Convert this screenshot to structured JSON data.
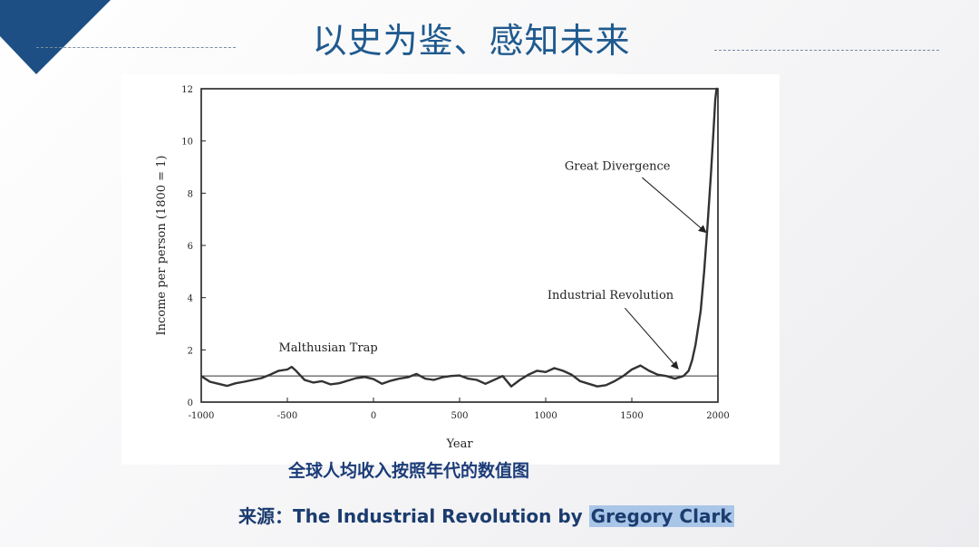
{
  "slide": {
    "title": "以史为鉴、感知未来",
    "caption": "全球人均收入按照年代的数值图",
    "source_prefix": "来源：The Industrial Revolution by ",
    "source_author": "Gregory Clark",
    "accent_color": "#1f5a8e"
  },
  "chart_data": {
    "type": "line",
    "title": "",
    "xlabel": "Year",
    "ylabel": "Income per person (1800 = 1)",
    "xlim": [
      -1000,
      2000
    ],
    "ylim": [
      0,
      12
    ],
    "x_ticks": [
      -1000,
      -500,
      0,
      500,
      1000,
      1500,
      2000
    ],
    "y_ticks": [
      0,
      2,
      4,
      6,
      8,
      10,
      12
    ],
    "grid": false,
    "reference_line": {
      "y": 1
    },
    "annotations": [
      {
        "text": "Malthusian Trap"
      },
      {
        "text": "Industrial Revolution",
        "points_to": [
          1800,
          1.0
        ]
      },
      {
        "text": "Great Divergence",
        "points_to": [
          1930,
          6.5
        ]
      }
    ],
    "series": [
      {
        "x": [
          -1000,
          -950,
          -900,
          -850,
          -800,
          -750,
          -700,
          -650,
          -600,
          -550,
          -500,
          -475,
          -450,
          -400,
          -350,
          -300,
          -250,
          -200,
          -150,
          -100,
          -50,
          0,
          50,
          100,
          150,
          200,
          250,
          300,
          350,
          400,
          450,
          500,
          550,
          600,
          650,
          700,
          750,
          800,
          850,
          900,
          950,
          1000,
          1050,
          1100,
          1150,
          1200,
          1250,
          1300,
          1350,
          1400,
          1450,
          1500,
          1550,
          1600,
          1650,
          1700,
          1750,
          1800,
          1830,
          1850,
          1870,
          1900,
          1920,
          1940,
          1960,
          1975,
          1985,
          1992,
          1998
        ],
        "y": [
          1.0,
          0.78,
          0.7,
          0.62,
          0.72,
          0.78,
          0.85,
          0.92,
          1.05,
          1.2,
          1.25,
          1.35,
          1.2,
          0.85,
          0.75,
          0.8,
          0.68,
          0.72,
          0.82,
          0.92,
          0.96,
          0.88,
          0.7,
          0.82,
          0.9,
          0.95,
          1.08,
          0.9,
          0.85,
          0.95,
          1.0,
          1.02,
          0.9,
          0.85,
          0.7,
          0.85,
          1.0,
          0.6,
          0.85,
          1.05,
          1.2,
          1.15,
          1.3,
          1.2,
          1.05,
          0.8,
          0.7,
          0.6,
          0.65,
          0.8,
          1.0,
          1.25,
          1.4,
          1.2,
          1.05,
          1.0,
          0.9,
          1.0,
          1.2,
          1.6,
          2.2,
          3.5,
          5.0,
          6.8,
          8.8,
          10.5,
          11.6,
          12.0,
          12.0
        ]
      }
    ]
  }
}
